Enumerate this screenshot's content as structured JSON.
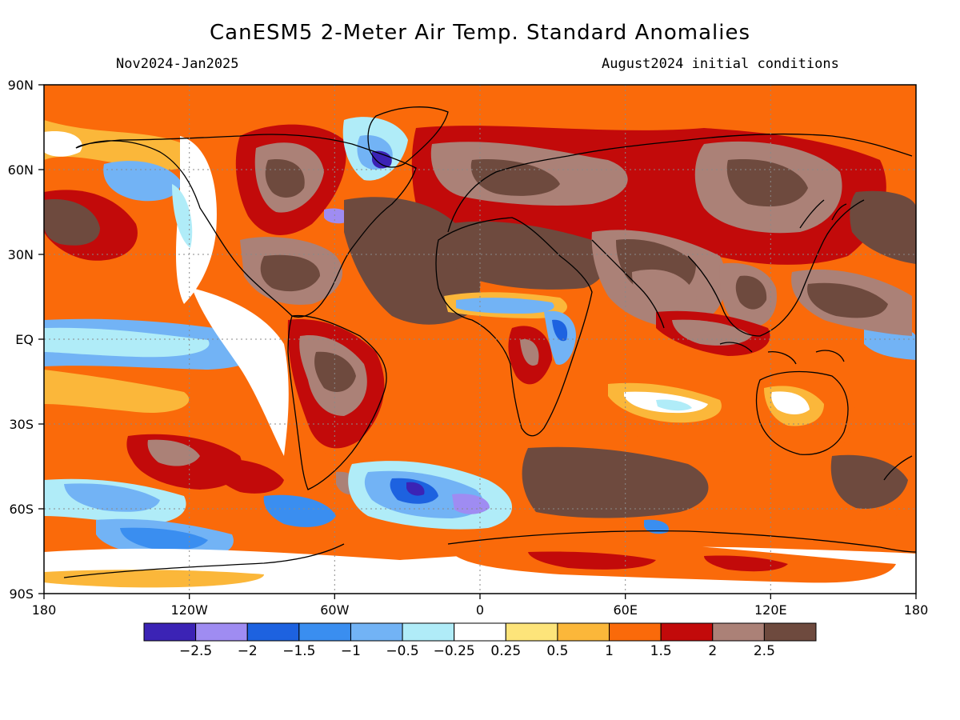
{
  "title": "CanESM5 2-Meter Air Temp. Standard Anomalies",
  "period": "Nov2024-Jan2025",
  "init": "August2024 initial conditions",
  "lat_labels": [
    "90N",
    "60N",
    "30N",
    "EQ",
    "30S",
    "60S",
    "90S"
  ],
  "lon_labels": [
    "180",
    "120W",
    "60W",
    "0",
    "60E",
    "120E",
    "180"
  ],
  "colorbar": {
    "labels": [
      "-2.5",
      "-2",
      "-1.5",
      "-1",
      "-0.5",
      "-0.25",
      "0.25",
      "0.5",
      "1",
      "1.5",
      "2",
      "2.5"
    ],
    "colors": [
      "#3b23b5",
      "#9f8cf2",
      "#1d62e0",
      "#3a8ef0",
      "#72b3f5",
      "#b0ecf8",
      "#ffffff",
      "#fde47a",
      "#fbb73a",
      "#fa6a0a",
      "#c20a0a",
      "#ab8177",
      "#6e4a3e"
    ]
  },
  "map_colors": {
    "strong_warm": "#6e4a3e",
    "warm2": "#ab8177",
    "warm15": "#c20a0a",
    "warm1": "#fa6a0a",
    "warm05": "#fbb73a",
    "warm025": "#fde47a",
    "neutral": "#ffffff",
    "cool025": "#b0ecf8",
    "cool05": "#72b3f5",
    "cool1": "#3a8ef0",
    "cool15": "#1d62e0",
    "cool2": "#9f8cf2",
    "cool25": "#3b23b5"
  }
}
